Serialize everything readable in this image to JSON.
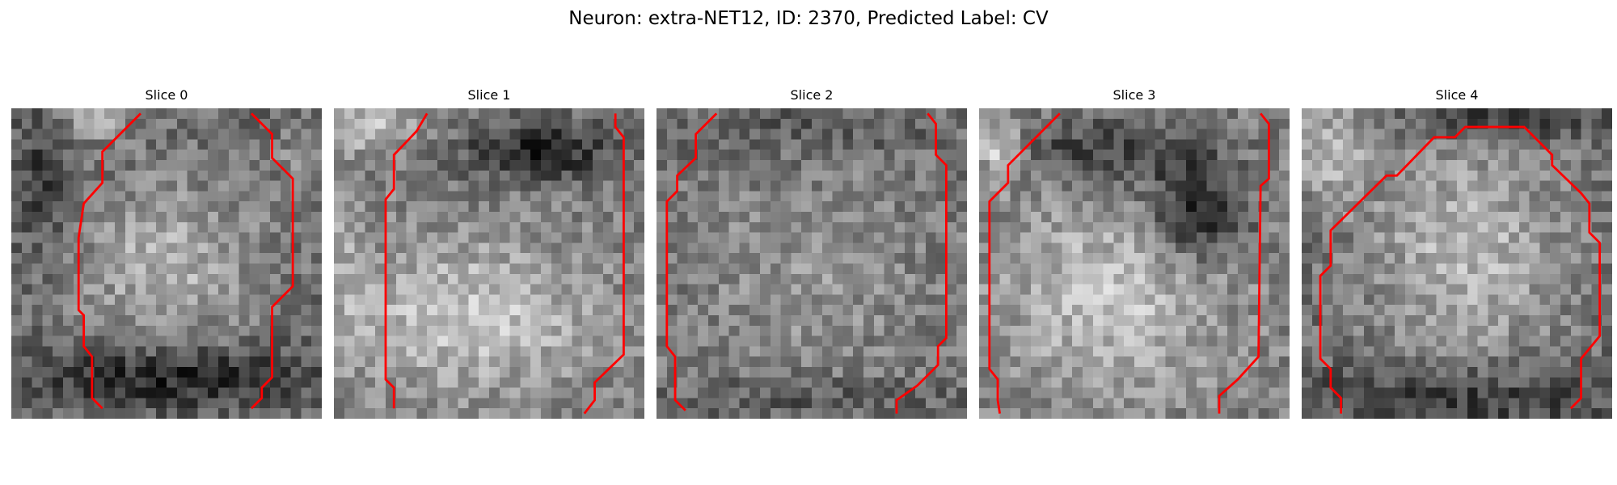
{
  "figure": {
    "title": "Neuron: extra-NET12, ID: 2370, Predicted Label: CV"
  },
  "colors": {
    "contour": "#ff0000",
    "colormap": "gray"
  },
  "slices": [
    {
      "label": "Slice 0"
    },
    {
      "label": "Slice 1"
    },
    {
      "label": "Slice 2"
    },
    {
      "label": "Slice 3"
    },
    {
      "label": "Slice 4"
    }
  ]
}
